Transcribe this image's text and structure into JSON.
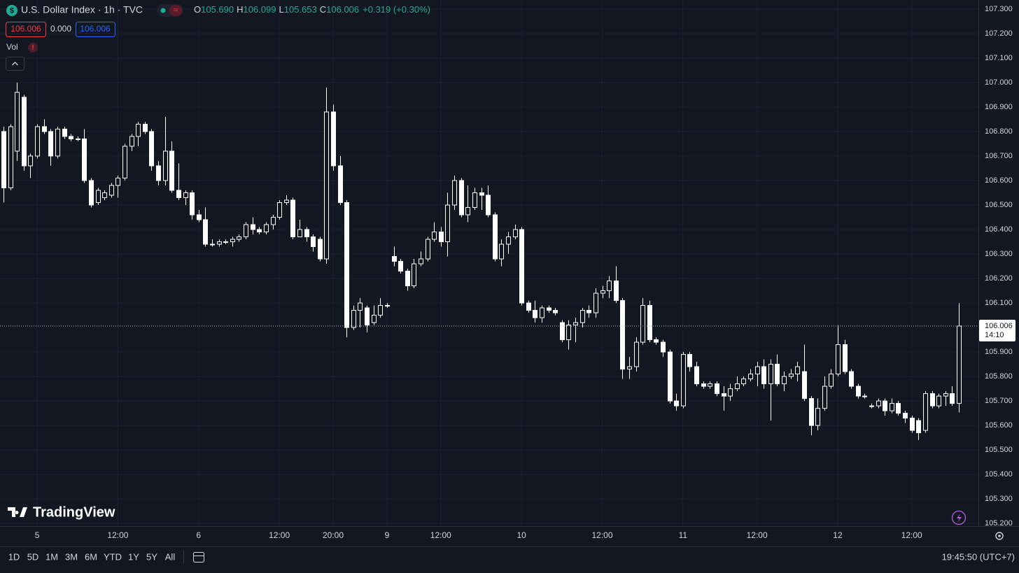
{
  "header": {
    "title": "U.S. Dollar Index · 1h · TVC",
    "ohlc": [
      {
        "label": "O",
        "value": "105.690"
      },
      {
        "label": "H",
        "value": "106.099"
      },
      {
        "label": "L",
        "value": "105.653"
      },
      {
        "label": "C",
        "value": "106.006"
      }
    ],
    "change": "+0.319 (+0.30%)",
    "bid": "106.006",
    "spread": "0.000",
    "ask": "106.006",
    "vol": "Vol"
  },
  "watermark": "TradingView",
  "range_buttons": [
    "1D",
    "5D",
    "1M",
    "3M",
    "6M",
    "YTD",
    "1Y",
    "5Y",
    "All"
  ],
  "clock": "19:45:50 (UTC+7)",
  "chart_data": {
    "type": "candlestick",
    "up_color": "#ffffff",
    "down_color": "#ffffff",
    "grid": true,
    "categories": [
      null,
      null,
      null,
      null,
      null,
      "5",
      null,
      null,
      null,
      null,
      null,
      null,
      null,
      null,
      null,
      null,
      null,
      "12:00",
      null,
      null,
      null,
      null,
      null,
      null,
      null,
      null,
      null,
      null,
      null,
      "6",
      null,
      null,
      null,
      null,
      null,
      null,
      null,
      null,
      null,
      null,
      null,
      "12:00",
      null,
      null,
      null,
      null,
      null,
      null,
      null,
      "20:00",
      null,
      null,
      null,
      null,
      null,
      null,
      null,
      "9",
      null,
      null,
      null,
      null,
      null,
      null,
      null,
      "12:00",
      null,
      null,
      null,
      null,
      null,
      null,
      null,
      null,
      null,
      null,
      null,
      "10",
      null,
      null,
      null,
      null,
      null,
      null,
      null,
      null,
      null,
      null,
      null,
      "12:00",
      null,
      null,
      null,
      null,
      null,
      null,
      null,
      null,
      null,
      null,
      null,
      "11",
      null,
      null,
      null,
      null,
      null,
      null,
      null,
      null,
      null,
      null,
      "12:00",
      null,
      null,
      null,
      null,
      null,
      null,
      null,
      null,
      null,
      null,
      null,
      "12",
      null,
      null,
      null,
      null,
      null,
      null,
      null,
      null,
      null,
      null,
      "12:00",
      null,
      null,
      null,
      null,
      null,
      null,
      null
    ],
    "open": [
      106.8,
      106.57,
      106.72,
      106.94,
      106.66,
      106.7,
      106.82,
      106.8,
      106.7,
      106.81,
      106.78,
      106.77,
      106.77,
      106.6,
      106.51,
      106.53,
      106.54,
      106.58,
      106.61,
      106.74,
      106.78,
      106.83,
      106.8,
      106.66,
      106.6,
      106.72,
      106.56,
      106.53,
      106.55,
      106.46,
      106.44,
      106.34,
      106.34,
      106.35,
      106.35,
      106.36,
      106.37,
      106.42,
      106.4,
      106.39,
      106.42,
      106.45,
      106.51,
      106.52,
      106.37,
      106.4,
      106.37,
      106.36,
      106.28,
      106.88,
      106.66,
      106.51,
      106.0,
      106.07,
      106.08,
      106.02,
      106.05,
      106.09,
      106.29,
      106.27,
      106.23,
      106.17,
      106.26,
      106.28,
      106.36,
      106.39,
      106.35,
      106.5,
      106.6,
      106.46,
      106.49,
      106.55,
      106.54,
      106.46,
      106.28,
      106.34,
      106.37,
      106.4,
      106.1,
      106.07,
      106.04,
      106.08,
      106.07,
      106.02,
      105.95,
      106.01,
      106.02,
      106.07,
      106.06,
      106.14,
      106.15,
      106.19,
      106.11,
      105.83,
      105.84,
      105.94,
      106.09,
      105.95,
      105.94,
      105.9,
      105.7,
      105.68,
      105.89,
      105.84,
      105.77,
      105.76,
      105.77,
      105.73,
      105.72,
      105.75,
      105.77,
      105.79,
      105.81,
      105.84,
      105.77,
      105.85,
      105.77,
      105.8,
      105.81,
      105.82,
      105.71,
      105.6,
      105.67,
      105.76,
      105.81,
      105.93,
      105.82,
      105.76,
      105.72,
      105.68,
      105.68,
      105.7,
      105.66,
      105.69,
      105.65,
      105.63,
      105.62,
      105.58,
      105.73,
      105.68,
      105.72,
      105.73,
      105.69
    ],
    "high": [
      106.82,
      106.83,
      107.0,
      106.95,
      106.71,
      106.83,
      106.85,
      106.81,
      106.82,
      106.82,
      106.79,
      106.78,
      106.81,
      106.61,
      106.57,
      106.56,
      106.59,
      106.62,
      106.75,
      106.79,
      106.84,
      106.84,
      106.81,
      106.68,
      106.86,
      106.76,
      106.67,
      106.56,
      106.56,
      106.48,
      106.49,
      106.36,
      106.36,
      106.36,
      106.37,
      106.38,
      106.43,
      106.45,
      106.41,
      106.43,
      106.46,
      106.52,
      106.54,
      106.53,
      106.44,
      106.41,
      106.38,
      106.37,
      106.98,
      106.91,
      106.7,
      106.52,
      106.09,
      106.12,
      106.09,
      106.09,
      106.12,
      106.1,
      106.33,
      106.28,
      106.24,
      106.28,
      106.31,
      106.37,
      106.43,
      106.41,
      106.55,
      106.62,
      106.61,
      106.58,
      106.57,
      106.57,
      106.58,
      106.47,
      106.36,
      106.39,
      106.42,
      106.41,
      106.11,
      106.11,
      106.09,
      106.09,
      106.08,
      106.03,
      106.03,
      106.04,
      106.08,
      106.09,
      106.16,
      106.17,
      106.21,
      106.25,
      106.12,
      105.88,
      105.96,
      106.12,
      106.11,
      105.96,
      105.95,
      105.91,
      105.73,
      105.9,
      105.9,
      105.86,
      105.78,
      105.78,
      105.78,
      105.76,
      105.77,
      105.8,
      105.8,
      105.83,
      105.86,
      105.87,
      105.87,
      105.89,
      105.82,
      105.83,
      105.86,
      105.93,
      105.72,
      105.71,
      105.8,
      105.83,
      106.01,
      105.95,
      105.83,
      105.77,
      105.73,
      105.69,
      105.71,
      105.71,
      105.71,
      105.7,
      105.66,
      105.64,
      105.63,
      105.74,
      105.74,
      105.73,
      105.74,
      105.76,
      106.099
    ],
    "low": [
      106.51,
      106.56,
      106.68,
      106.64,
      106.61,
      106.69,
      106.79,
      106.66,
      106.69,
      106.77,
      106.76,
      106.76,
      106.59,
      106.49,
      106.5,
      106.52,
      106.53,
      106.53,
      106.6,
      106.72,
      106.74,
      106.79,
      106.64,
      106.58,
      106.58,
      106.55,
      106.52,
      106.5,
      106.44,
      106.43,
      106.33,
      106.33,
      106.33,
      106.34,
      106.33,
      106.35,
      106.36,
      106.38,
      106.38,
      106.38,
      106.4,
      106.44,
      106.5,
      106.36,
      106.37,
      106.35,
      106.31,
      106.27,
      106.26,
      106.64,
      106.5,
      105.96,
      105.99,
      106.0,
      105.98,
      106.01,
      106.04,
      106.08,
      106.25,
      106.22,
      106.15,
      106.16,
      106.25,
      106.27,
      106.35,
      106.33,
      106.29,
      106.48,
      106.45,
      106.43,
      106.48,
      106.48,
      106.45,
      106.27,
      106.25,
      106.3,
      106.36,
      106.09,
      106.06,
      106.02,
      106.02,
      106.06,
      106.05,
      105.94,
      105.91,
      105.94,
      106.0,
      106.04,
      106.04,
      106.12,
      106.12,
      106.1,
      105.79,
      105.79,
      105.82,
      105.93,
      105.94,
      105.93,
      105.88,
      105.69,
      105.66,
      105.67,
      105.82,
      105.76,
      105.75,
      105.75,
      105.72,
      105.66,
      105.7,
      105.74,
      105.76,
      105.78,
      105.76,
      105.75,
      105.62,
      105.76,
      105.74,
      105.79,
      105.78,
      105.7,
      105.56,
      105.58,
      105.66,
      105.75,
      105.8,
      105.81,
      105.75,
      105.71,
      105.71,
      105.67,
      105.67,
      105.64,
      105.65,
      105.64,
      105.61,
      105.57,
      105.54,
      105.57,
      105.67,
      105.67,
      105.68,
      105.68,
      105.653
    ],
    "close": [
      106.57,
      106.82,
      106.96,
      106.66,
      106.7,
      106.82,
      106.8,
      106.7,
      106.81,
      106.78,
      106.77,
      106.77,
      106.6,
      106.5,
      106.56,
      106.55,
      106.58,
      106.61,
      106.74,
      106.78,
      106.83,
      106.8,
      106.66,
      106.6,
      106.72,
      106.56,
      106.53,
      106.55,
      106.46,
      106.44,
      106.34,
      106.34,
      106.35,
      106.35,
      106.36,
      106.37,
      106.42,
      106.4,
      106.39,
      106.42,
      106.45,
      106.51,
      106.52,
      106.37,
      106.4,
      106.37,
      106.33,
      106.28,
      106.88,
      106.66,
      106.51,
      106.0,
      106.07,
      106.1,
      106.01,
      106.05,
      106.09,
      106.09,
      106.27,
      106.23,
      106.17,
      106.26,
      106.28,
      106.36,
      106.39,
      106.35,
      106.5,
      106.6,
      106.46,
      106.49,
      106.55,
      106.54,
      106.46,
      106.28,
      106.34,
      106.37,
      106.4,
      106.1,
      106.07,
      106.04,
      106.08,
      106.07,
      106.06,
      105.95,
      106.01,
      106.02,
      106.07,
      106.06,
      106.14,
      106.15,
      106.19,
      106.11,
      105.83,
      105.84,
      105.94,
      106.09,
      105.95,
      105.94,
      105.9,
      105.7,
      105.68,
      105.89,
      105.84,
      105.77,
      105.76,
      105.77,
      105.73,
      105.72,
      105.75,
      105.77,
      105.79,
      105.81,
      105.84,
      105.77,
      105.85,
      105.77,
      105.8,
      105.81,
      105.84,
      105.71,
      105.6,
      105.67,
      105.76,
      105.81,
      105.93,
      105.82,
      105.76,
      105.72,
      105.72,
      105.68,
      105.7,
      105.66,
      105.69,
      105.65,
      105.63,
      105.58,
      105.57,
      105.73,
      105.68,
      105.72,
      105.73,
      105.69,
      106.006
    ],
    "last_price": 106.006,
    "countdown": "14:10",
    "ylim": [
      105.189,
      107.337
    ],
    "yticks": [
      {
        "value": 105.2,
        "label": "105.200"
      },
      {
        "value": 105.3,
        "label": "105.300"
      },
      {
        "value": 105.4,
        "label": "105.400"
      },
      {
        "value": 105.5,
        "label": "105.500"
      },
      {
        "value": 105.6,
        "label": "105.600"
      },
      {
        "value": 105.7,
        "label": "105.700"
      },
      {
        "value": 105.8,
        "label": "105.800"
      },
      {
        "value": 105.9,
        "label": "105.900"
      },
      {
        "value": 106.1,
        "label": "106.100"
      },
      {
        "value": 106.2,
        "label": "106.200"
      },
      {
        "value": 106.3,
        "label": "106.300"
      },
      {
        "value": 106.4,
        "label": "106.400"
      },
      {
        "value": 106.5,
        "label": "106.500"
      },
      {
        "value": 106.6,
        "label": "106.600"
      },
      {
        "value": 106.7,
        "label": "106.700"
      },
      {
        "value": 106.8,
        "label": "106.800"
      },
      {
        "value": 106.9,
        "label": "106.900"
      },
      {
        "value": 107,
        "label": "107.000"
      },
      {
        "value": 107.1,
        "label": "107.100"
      },
      {
        "value": 107.2,
        "label": "107.200"
      },
      {
        "value": 107.3,
        "label": "107.300"
      }
    ]
  }
}
